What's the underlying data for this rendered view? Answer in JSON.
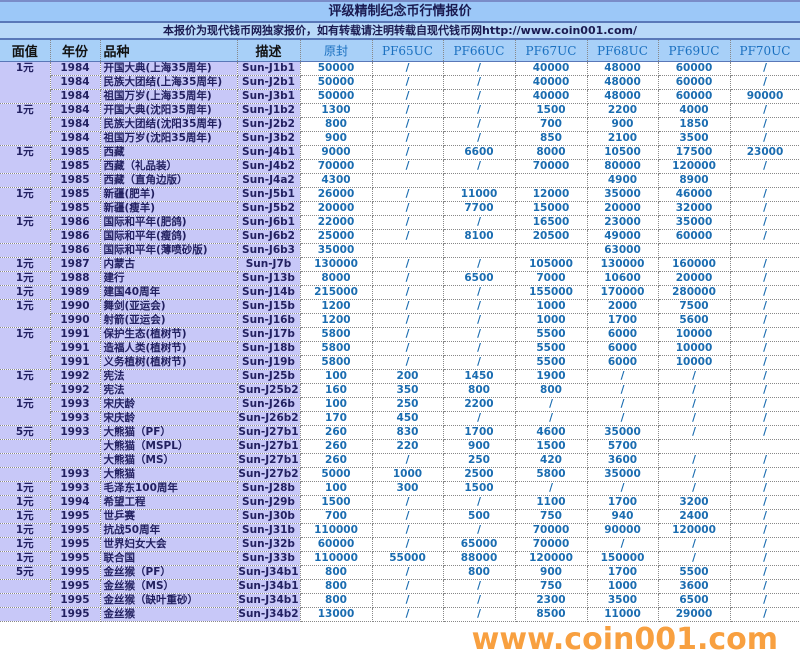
{
  "title": "评级精制纪念币行情报价",
  "subtitle": "本报价为现代钱币网独家报价，如有转载请注明转载自现代钱币网http://www.coin001.com/",
  "headers": [
    "面值",
    "年份",
    "品种",
    "描述",
    "原封",
    "PF65UC",
    "PF66UC",
    "PF67UC",
    "PF68UC",
    "PF69UC",
    "PF70UC"
  ],
  "rows": [
    [
      "1元",
      "1984",
      "开国大典(上海35周年)",
      "Sun-J1b1",
      "50000",
      "/",
      "/",
      "40000",
      "48000",
      "60000",
      "/"
    ],
    [
      "",
      "1984",
      "民族大团结(上海35周年)",
      "Sun-J2b1",
      "50000",
      "/",
      "/",
      "40000",
      "48000",
      "60000",
      "/"
    ],
    [
      "",
      "1984",
      "祖国万岁(上海35周年)",
      "Sun-J3b1",
      "50000",
      "/",
      "/",
      "40000",
      "48000",
      "60000",
      "90000"
    ],
    [
      "1元",
      "1984",
      "开国大典(沈阳35周年)",
      "Sun-J1b2",
      "1300",
      "/",
      "/",
      "1500",
      "2200",
      "4000",
      "/"
    ],
    [
      "",
      "1984",
      "民族大团结(沈阳35周年)",
      "Sun-J2b2",
      "800",
      "/",
      "/",
      "700",
      "900",
      "1850",
      "/"
    ],
    [
      "",
      "1984",
      "祖国万岁(沈阳35周年)",
      "Sun-J3b2",
      "900",
      "/",
      "/",
      "850",
      "2100",
      "3500",
      "/"
    ],
    [
      "1元",
      "1985",
      "西藏",
      "Sun-J4b1",
      "9000",
      "/",
      "6600",
      "8000",
      "10500",
      "17500",
      "23000"
    ],
    [
      "",
      "1985",
      "西藏（礼品装）",
      "Sun-J4b2",
      "70000",
      "/",
      "/",
      "70000",
      "80000",
      "120000",
      "/"
    ],
    [
      "",
      "1985",
      "西藏（直角边版）",
      "Sun-J4a2",
      "4300",
      "",
      "",
      "",
      "4900",
      "8900",
      ""
    ],
    [
      "1元",
      "1985",
      "新疆(肥羊)",
      "Sun-J5b1",
      "26000",
      "/",
      "11000",
      "12000",
      "35000",
      "46000",
      "/"
    ],
    [
      "",
      "1985",
      "新疆(瘦羊)",
      "Sun-J5b2",
      "20000",
      "/",
      "7700",
      "15000",
      "20000",
      "32000",
      "/"
    ],
    [
      "1元",
      "1986",
      "国际和平年(肥鸽)",
      "Sun-J6b1",
      "22000",
      "/",
      "/",
      "16500",
      "23000",
      "35000",
      "/"
    ],
    [
      "",
      "1986",
      "国际和平年(瘦鸽)",
      "Sun-J6b2",
      "25000",
      "/",
      "8100",
      "20500",
      "49000",
      "60000",
      "/"
    ],
    [
      "",
      "1986",
      "国际和平年(薄喷砂版)",
      "Sun-J6b3",
      "35000",
      "",
      "",
      "",
      "63000",
      "",
      ""
    ],
    [
      "1元",
      "1987",
      "内蒙古",
      "Sun-J7b",
      "130000",
      "/",
      "/",
      "105000",
      "130000",
      "160000",
      "/"
    ],
    [
      "1元",
      "1988",
      "建行",
      "Sun-J13b",
      "8000",
      "/",
      "6500",
      "7000",
      "10600",
      "20000",
      "/"
    ],
    [
      "1元",
      "1989",
      "建国40周年",
      "Sun-J14b",
      "215000",
      "/",
      "/",
      "155000",
      "170000",
      "280000",
      "/"
    ],
    [
      "1元",
      "1990",
      "舞剑(亚运会)",
      "Sun-J15b",
      "1200",
      "/",
      "/",
      "1000",
      "2000",
      "7500",
      "/"
    ],
    [
      "",
      "1990",
      "射箭(亚运会)",
      "Sun-J16b",
      "1200",
      "/",
      "/",
      "1000",
      "1700",
      "5600",
      "/"
    ],
    [
      "1元",
      "1991",
      "保护生态(植树节)",
      "Sun-J17b",
      "5800",
      "/",
      "/",
      "5500",
      "6000",
      "10000",
      "/"
    ],
    [
      "",
      "1991",
      "造福人类(植树节)",
      "Sun-J18b",
      "5800",
      "/",
      "/",
      "5500",
      "6000",
      "10000",
      "/"
    ],
    [
      "",
      "1991",
      "义务植树(植树节)",
      "Sun-J19b",
      "5800",
      "/",
      "/",
      "5500",
      "6000",
      "10000",
      "/"
    ],
    [
      "1元",
      "1992",
      "宪法",
      "Sun-J25b",
      "100",
      "200",
      "1450",
      "1900",
      "/",
      "/",
      "/"
    ],
    [
      "",
      "1992",
      "宪法",
      "Sun-J25b2",
      "160",
      "350",
      "800",
      "800",
      "/",
      "/",
      "/"
    ],
    [
      "1元",
      "1993",
      "宋庆龄",
      "Sun-J26b",
      "100",
      "250",
      "2200",
      "/",
      "/",
      "/",
      "/"
    ],
    [
      "",
      "1993",
      "宋庆龄",
      "Sun-J26b2",
      "170",
      "450",
      "/",
      "/",
      "/",
      "/",
      "/"
    ],
    [
      "5元",
      "1993",
      "大熊猫（PF）",
      "Sun-J27b1",
      "260",
      "830",
      "1700",
      "4600",
      "35000",
      "/",
      "/"
    ],
    [
      "",
      "",
      "大熊猫（MSPL）",
      "Sun-J27b1",
      "260",
      "220",
      "900",
      "1500",
      "5700",
      "",
      ""
    ],
    [
      "",
      "",
      "大熊猫（MS）",
      "Sun-J27b1",
      "260",
      "/",
      "250",
      "420",
      "3600",
      "/",
      "/"
    ],
    [
      "",
      "1993",
      "大熊猫",
      "Sun-J27b2",
      "5000",
      "1000",
      "2500",
      "5800",
      "35000",
      "/",
      "/"
    ],
    [
      "1元",
      "1993",
      "毛泽东100周年",
      "Sun-J28b",
      "100",
      "300",
      "1500",
      "/",
      "/",
      "/",
      "/"
    ],
    [
      "1元",
      "1994",
      "希望工程",
      "Sun-J29b",
      "1500",
      "/",
      "/",
      "1100",
      "1700",
      "3200",
      "/"
    ],
    [
      "1元",
      "1995",
      "世乒赛",
      "Sun-J30b",
      "700",
      "/",
      "500",
      "750",
      "940",
      "2400",
      "/"
    ],
    [
      "1元",
      "1995",
      "抗战50周年",
      "Sun-J31b",
      "110000",
      "/",
      "/",
      "70000",
      "90000",
      "120000",
      "/"
    ],
    [
      "1元",
      "1995",
      "世界妇女大会",
      "Sun-J32b",
      "60000",
      "/",
      "65000",
      "70000",
      "/",
      "/",
      "/"
    ],
    [
      "1元",
      "1995",
      "联合国",
      "Sun-J33b",
      "110000",
      "55000",
      "88000",
      "120000",
      "150000",
      "/",
      "/"
    ],
    [
      "5元",
      "1995",
      "金丝猴（PF）",
      "Sun-J34b1",
      "800",
      "/",
      "800",
      "900",
      "1700",
      "5500",
      "/"
    ],
    [
      "",
      "1995",
      "金丝猴（MS）",
      "Sun-J34b1",
      "800",
      "/",
      "/",
      "750",
      "1000",
      "3600",
      "/"
    ],
    [
      "",
      "1995",
      "金丝猴（缺叶重砂）",
      "Sun-J34b1",
      "800",
      "/",
      "/",
      "2300",
      "3500",
      "6500",
      "/"
    ],
    [
      "",
      "1995",
      "金丝猴",
      "Sun-J34b2",
      "13000",
      "/",
      "/",
      "8500",
      "11000",
      "29000",
      "/"
    ]
  ],
  "watermark": "www.coin001.com",
  "colors": {
    "label_bg": "#c8c8f8",
    "header_bg": "#a8d0f8",
    "value_text": "#1a6cb0",
    "watermark": "#f8a040"
  }
}
